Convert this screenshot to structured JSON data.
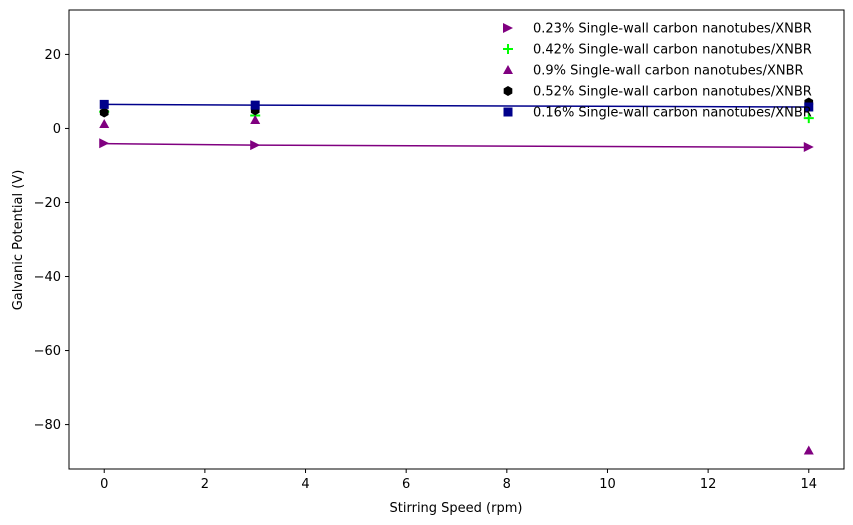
{
  "chart_data": {
    "type": "scatter",
    "xlabel": "Stirring Speed (rpm)",
    "ylabel": "Galvanic Potential (V)",
    "xlim": [
      -0.7,
      14.7
    ],
    "ylim": [
      -92,
      32
    ],
    "xticks": [
      0,
      2,
      4,
      6,
      8,
      10,
      12,
      14
    ],
    "yticks": [
      -80,
      -60,
      -40,
      -20,
      0,
      20
    ],
    "xtick_labels": [
      "0",
      "2",
      "4",
      "6",
      "8",
      "10",
      "12",
      "14"
    ],
    "ytick_labels": [
      "−80",
      "−60",
      "−40",
      "−20",
      "0",
      "20"
    ],
    "grid": false,
    "legend_position": "top-right",
    "series": [
      {
        "name": "0.23% Single-wall carbon nanotubes/XNBR",
        "marker": "triangle-right",
        "color": "#800080",
        "x": [
          0,
          3,
          14
        ],
        "y": [
          -4,
          -4.5,
          -5
        ],
        "fit": {
          "x": [
            0,
            3,
            14
          ],
          "y": [
            -4.1,
            -4.5,
            -5.1
          ]
        }
      },
      {
        "name": "0.42% Single-wall carbon nanotubes/XNBR",
        "marker": "plus",
        "color": "#00ff00",
        "x": [
          0,
          3,
          14
        ],
        "y": [
          4.5,
          3.5,
          2.8
        ]
      },
      {
        "name": "0.9% Single-wall carbon nanotubes/XNBR",
        "marker": "triangle-up",
        "color": "#800080",
        "x": [
          0,
          3,
          14
        ],
        "y": [
          1.2,
          2.3,
          -87
        ]
      },
      {
        "name": "0.52% Single-wall carbon nanotubes/XNBR",
        "marker": "hexagon",
        "color": "#000000",
        "x": [
          0,
          3,
          14
        ],
        "y": [
          4.3,
          4.9,
          7.0
        ]
      },
      {
        "name": "0.16% Single-wall carbon nanotubes/XNBR",
        "marker": "square",
        "color": "#00008b",
        "x": [
          0,
          3,
          14
        ],
        "y": [
          6.5,
          6.3,
          5.8
        ],
        "fit": {
          "x": [
            0,
            3,
            14
          ],
          "y": [
            6.5,
            6.3,
            5.8
          ]
        }
      }
    ]
  }
}
